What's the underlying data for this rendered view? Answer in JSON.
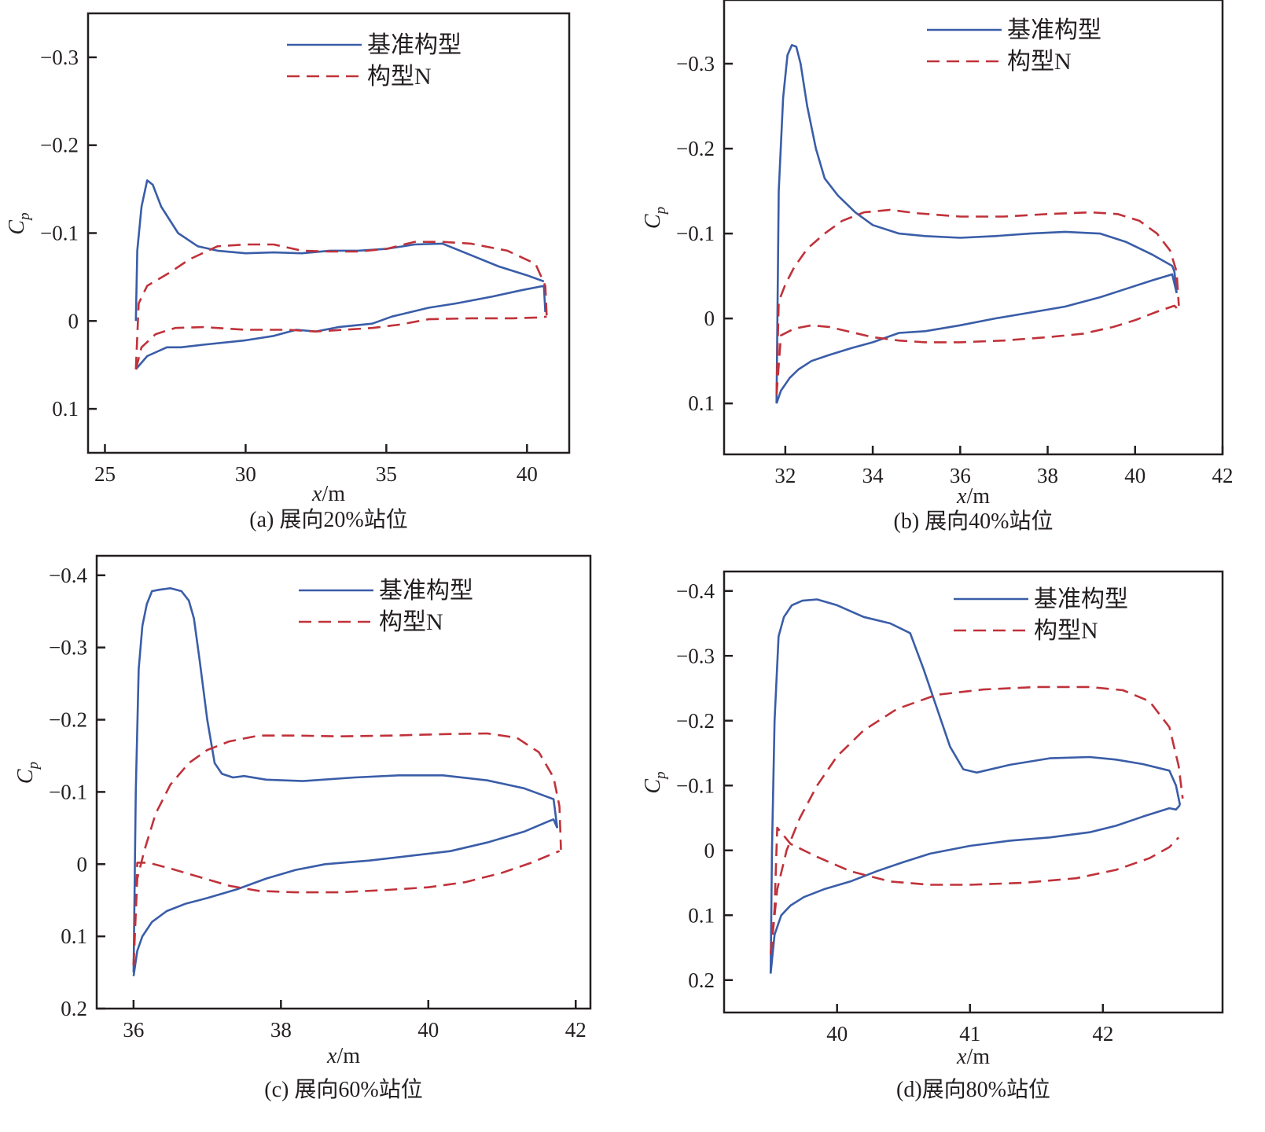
{
  "figure": {
    "legend_labels": {
      "baseline": "基准构型",
      "modified": "构型N"
    },
    "colors": {
      "baseline": "#3a5da8",
      "modified": "#c0323a",
      "axis": "#231f20"
    }
  },
  "chart_data": [
    {
      "id": "a",
      "type": "line",
      "caption": "(a) 展向20%站位",
      "xlabel": "x/m",
      "ylabel": "Cp",
      "y_inverted": true,
      "xlim": [
        24.4,
        41.5
      ],
      "ylim": [
        -0.35,
        0.15
      ],
      "xticks": [
        25,
        30,
        35,
        40
      ],
      "xtick_labels": [
        "25",
        "30",
        "35",
        "40"
      ],
      "yticks": [
        -0.3,
        -0.2,
        -0.1,
        0,
        0.1
      ],
      "ytick_labels": [
        "−0.3",
        "−0.2",
        "−0.1",
        "0",
        "0.1"
      ],
      "legend": "top-right",
      "series": [
        {
          "name": "基准构型",
          "style": "solid",
          "upper": {
            "x": [
              26.1,
              26.15,
              26.3,
              26.5,
              26.7,
              27.0,
              27.6,
              28.3,
              29.0,
              30.0,
              31.0,
              32.0,
              33.0,
              34.0,
              35.0,
              36.0,
              37.0,
              38.0,
              39.0,
              40.0,
              40.6
            ],
            "y": [
              0.0,
              -0.08,
              -0.13,
              -0.16,
              -0.155,
              -0.13,
              -0.1,
              -0.085,
              -0.08,
              -0.077,
              -0.078,
              -0.077,
              -0.08,
              -0.08,
              -0.082,
              -0.087,
              -0.088,
              -0.075,
              -0.062,
              -0.052,
              -0.045
            ]
          },
          "lower": {
            "x": [
              26.1,
              26.5,
              27.2,
              27.7,
              28.5,
              30.0,
              31.0,
              31.8,
              32.5,
              33.3,
              34.5,
              35.2,
              36.5,
              37.5,
              38.8,
              39.8,
              40.6,
              40.65
            ],
            "y": [
              0.055,
              0.04,
              0.03,
              0.03,
              0.027,
              0.022,
              0.017,
              0.01,
              0.012,
              0.007,
              0.003,
              -0.005,
              -0.015,
              -0.02,
              -0.028,
              -0.035,
              -0.04,
              -0.01
            ]
          }
        },
        {
          "name": "构型N",
          "style": "dashed",
          "upper": {
            "x": [
              26.1,
              26.2,
              26.5,
              27.3,
              28.0,
              29.0,
              30.0,
              31.0,
              32.0,
              33.0,
              34.0,
              35.0,
              36.0,
              37.0,
              38.0,
              39.3,
              40.3,
              40.65,
              40.7
            ],
            "y": [
              0.055,
              -0.02,
              -0.04,
              -0.055,
              -0.07,
              -0.085,
              -0.087,
              -0.087,
              -0.08,
              -0.079,
              -0.079,
              -0.082,
              -0.09,
              -0.09,
              -0.088,
              -0.08,
              -0.065,
              -0.04,
              -0.005
            ]
          },
          "lower": {
            "x": [
              26.1,
              26.3,
              26.8,
              27.5,
              28.5,
              30.0,
              31.5,
              32.5,
              33.5,
              34.5,
              35.5,
              36.5,
              38.0,
              39.5,
              40.5,
              40.7
            ],
            "y": [
              0.055,
              0.03,
              0.015,
              0.008,
              0.007,
              0.01,
              0.01,
              0.012,
              0.01,
              0.008,
              0.004,
              -0.002,
              -0.003,
              -0.003,
              -0.004,
              -0.005
            ]
          }
        }
      ]
    },
    {
      "id": "b",
      "type": "line",
      "caption": "(b) 展向40%站位",
      "xlabel": "x/m",
      "ylabel": "Cp",
      "y_inverted": true,
      "xlim": [
        30.6,
        42.0
      ],
      "ylim": [
        -0.375,
        0.16
      ],
      "xticks": [
        32,
        34,
        36,
        38,
        40,
        42
      ],
      "xtick_labels": [
        "32",
        "34",
        "36",
        "38",
        "40",
        "42"
      ],
      "yticks": [
        -0.3,
        -0.2,
        -0.1,
        0,
        0.1
      ],
      "ytick_labels": [
        "−0.3",
        "−0.2",
        "−0.1",
        "0",
        "0.1"
      ],
      "legend": "top-right",
      "series": [
        {
          "name": "基准构型",
          "style": "solid",
          "upper": {
            "x": [
              31.8,
              31.85,
              31.95,
              32.05,
              32.15,
              32.25,
              32.35,
              32.5,
              32.7,
              32.9,
              33.2,
              33.6,
              34.0,
              34.6,
              35.2,
              36.0,
              36.8,
              37.6,
              38.4,
              39.2,
              39.8,
              40.4,
              40.85,
              40.9,
              40.95
            ],
            "y": [
              0.1,
              -0.15,
              -0.26,
              -0.31,
              -0.322,
              -0.32,
              -0.3,
              -0.25,
              -0.2,
              -0.165,
              -0.145,
              -0.125,
              -0.11,
              -0.1,
              -0.097,
              -0.095,
              -0.097,
              -0.1,
              -0.102,
              -0.1,
              -0.09,
              -0.075,
              -0.062,
              -0.055,
              -0.03
            ]
          },
          "lower": {
            "x": [
              31.8,
              31.9,
              32.1,
              32.3,
              32.6,
              33.0,
              33.5,
              34.0,
              34.6,
              35.2,
              36.0,
              36.8,
              37.6,
              38.4,
              39.2,
              39.8,
              40.4,
              40.85,
              40.95
            ],
            "y": [
              0.1,
              0.085,
              0.07,
              0.06,
              0.05,
              0.043,
              0.035,
              0.028,
              0.017,
              0.015,
              0.008,
              0.0,
              -0.007,
              -0.014,
              -0.025,
              -0.035,
              -0.045,
              -0.052,
              -0.03
            ]
          }
        },
        {
          "name": "构型N",
          "style": "dashed",
          "upper": {
            "x": [
              31.8,
              31.85,
              32.0,
              32.2,
              32.5,
              32.9,
              33.3,
              33.8,
              34.4,
              35.0,
              36.0,
              37.0,
              38.0,
              39.0,
              39.6,
              40.1,
              40.5,
              40.8,
              40.95,
              41.0
            ],
            "y": [
              0.09,
              -0.02,
              -0.04,
              -0.06,
              -0.082,
              -0.1,
              -0.115,
              -0.125,
              -0.128,
              -0.124,
              -0.12,
              -0.12,
              -0.123,
              -0.125,
              -0.123,
              -0.115,
              -0.1,
              -0.08,
              -0.055,
              -0.015
            ]
          },
          "lower": {
            "x": [
              31.8,
              31.9,
              32.2,
              32.6,
              33.0,
              33.5,
              34.0,
              34.6,
              35.2,
              36.0,
              37.0,
              38.0,
              38.8,
              39.5,
              40.0,
              40.5,
              40.9,
              41.0
            ],
            "y": [
              0.09,
              0.02,
              0.012,
              0.008,
              0.01,
              0.016,
              0.022,
              0.026,
              0.028,
              0.028,
              0.026,
              0.022,
              0.018,
              0.01,
              0.002,
              -0.008,
              -0.015,
              -0.01
            ]
          }
        }
      ]
    },
    {
      "id": "c",
      "type": "line",
      "caption": "(c) 展向60%站位",
      "xlabel": "x/m",
      "ylabel": "Cp",
      "y_inverted": true,
      "xlim": [
        35.5,
        42.2
      ],
      "ylim": [
        -0.427,
        0.2
      ],
      "xticks": [
        36,
        38,
        40,
        42
      ],
      "xtick_labels": [
        "36",
        "38",
        "40",
        "42"
      ],
      "yticks": [
        -0.4,
        -0.3,
        -0.2,
        -0.1,
        0,
        0.1,
        0.2
      ],
      "ytick_labels": [
        "−0.4",
        "−0.3",
        "−0.2",
        "−0.1",
        "0",
        "0.1",
        "0.2"
      ],
      "legend": "top-right",
      "series": [
        {
          "name": "基准构型",
          "style": "solid",
          "upper": {
            "x": [
              36.0,
              36.03,
              36.07,
              36.12,
              36.18,
              36.25,
              36.35,
              36.5,
              36.65,
              36.75,
              36.82,
              36.9,
              37.0,
              37.1,
              37.2,
              37.35,
              37.5,
              37.8,
              38.3,
              39.0,
              39.6,
              40.2,
              40.8,
              41.3,
              41.7,
              41.75
            ],
            "y": [
              0.15,
              -0.1,
              -0.27,
              -0.33,
              -0.36,
              -0.378,
              -0.38,
              -0.382,
              -0.378,
              -0.365,
              -0.34,
              -0.28,
              -0.2,
              -0.14,
              -0.125,
              -0.12,
              -0.122,
              -0.117,
              -0.115,
              -0.12,
              -0.123,
              -0.123,
              -0.116,
              -0.105,
              -0.09,
              -0.05
            ]
          },
          "lower": {
            "x": [
              36.0,
              36.05,
              36.12,
              36.25,
              36.45,
              36.7,
              37.0,
              37.4,
              37.8,
              38.2,
              38.6,
              39.2,
              39.8,
              40.3,
              40.8,
              41.3,
              41.65,
              41.7,
              41.75
            ],
            "y": [
              0.155,
              0.12,
              0.1,
              0.08,
              0.065,
              0.055,
              0.047,
              0.035,
              0.02,
              0.008,
              0.0,
              -0.005,
              -0.012,
              -0.018,
              -0.03,
              -0.045,
              -0.06,
              -0.062,
              -0.05
            ]
          }
        },
        {
          "name": "构型N",
          "style": "dashed",
          "upper": {
            "x": [
              36.0,
              36.05,
              36.15,
              36.3,
              36.5,
              36.75,
              37.0,
              37.3,
              37.7,
              38.2,
              38.8,
              39.5,
              40.2,
              40.8,
              41.2,
              41.5,
              41.7,
              41.78,
              41.8
            ],
            "y": [
              0.14,
              0.02,
              -0.02,
              -0.07,
              -0.11,
              -0.14,
              -0.158,
              -0.17,
              -0.178,
              -0.178,
              -0.177,
              -0.178,
              -0.18,
              -0.181,
              -0.175,
              -0.155,
              -0.12,
              -0.08,
              -0.02
            ]
          },
          "lower": {
            "x": [
              36.0,
              36.05,
              36.2,
              36.5,
              36.9,
              37.3,
              37.7,
              38.2,
              38.8,
              39.4,
              40.0,
              40.5,
              41.0,
              41.4,
              41.7,
              41.78
            ],
            "y": [
              0.14,
              -0.002,
              -0.002,
              0.006,
              0.018,
              0.03,
              0.037,
              0.039,
              0.039,
              0.036,
              0.032,
              0.025,
              0.012,
              -0.002,
              -0.015,
              -0.018
            ]
          }
        }
      ]
    },
    {
      "id": "d",
      "type": "line",
      "caption": "(d)展向80%站位",
      "xlabel": "x/m",
      "ylabel": "Cp",
      "y_inverted": true,
      "xlim": [
        39.15,
        42.9
      ],
      "ylim": [
        -0.43,
        0.25
      ],
      "xticks": [
        40,
        41,
        42
      ],
      "xtick_labels": [
        "40",
        "41",
        "42"
      ],
      "yticks": [
        -0.4,
        -0.3,
        -0.2,
        -0.1,
        0,
        0.1,
        0.2
      ],
      "ytick_labels": [
        "−0.4",
        "−0.3",
        "−0.2",
        "−0.1",
        "0",
        "0.1",
        "0.2"
      ],
      "legend": "top-right",
      "series": [
        {
          "name": "基准构型",
          "style": "solid",
          "upper": {
            "x": [
              39.5,
              39.51,
              39.53,
              39.56,
              39.6,
              39.66,
              39.74,
              39.85,
              40.0,
              40.2,
              40.4,
              40.55,
              40.65,
              40.75,
              40.85,
              40.95,
              41.05,
              41.3,
              41.6,
              41.9,
              42.1,
              42.3,
              42.5,
              42.55,
              42.58
            ],
            "y": [
              0.19,
              0.0,
              -0.2,
              -0.33,
              -0.36,
              -0.378,
              -0.385,
              -0.387,
              -0.378,
              -0.36,
              -0.35,
              -0.335,
              -0.28,
              -0.22,
              -0.16,
              -0.125,
              -0.12,
              -0.132,
              -0.142,
              -0.144,
              -0.14,
              -0.133,
              -0.123,
              -0.1,
              -0.07
            ]
          },
          "lower": {
            "x": [
              39.5,
              39.53,
              39.58,
              39.65,
              39.75,
              39.9,
              40.1,
              40.3,
              40.5,
              40.7,
              41.0,
              41.3,
              41.6,
              41.9,
              42.1,
              42.3,
              42.5,
              42.55,
              42.58
            ],
            "y": [
              0.19,
              0.13,
              0.1,
              0.085,
              0.072,
              0.06,
              0.048,
              0.032,
              0.018,
              0.005,
              -0.007,
              -0.015,
              -0.02,
              -0.028,
              -0.038,
              -0.052,
              -0.065,
              -0.063,
              -0.07
            ]
          }
        },
        {
          "name": "构型N",
          "style": "dashed",
          "upper": {
            "x": [
              39.5,
              39.55,
              39.62,
              39.72,
              39.85,
              40.0,
              40.2,
              40.45,
              40.75,
              41.1,
              41.5,
              41.9,
              42.15,
              42.35,
              42.5,
              42.57,
              42.6
            ],
            "y": [
              0.16,
              0.06,
              0.0,
              -0.05,
              -0.1,
              -0.145,
              -0.185,
              -0.218,
              -0.24,
              -0.248,
              -0.252,
              -0.252,
              -0.247,
              -0.23,
              -0.19,
              -0.13,
              -0.08
            ]
          },
          "lower": {
            "x": [
              39.5,
              39.53,
              39.55,
              39.65,
              39.85,
              40.1,
              40.4,
              40.7,
              41.0,
              41.4,
              41.8,
              42.1,
              42.35,
              42.5,
              42.57
            ],
            "y": [
              0.16,
              0.09,
              -0.035,
              -0.01,
              0.01,
              0.032,
              0.048,
              0.053,
              0.053,
              0.05,
              0.043,
              0.03,
              0.012,
              -0.005,
              -0.02
            ]
          }
        }
      ]
    }
  ]
}
